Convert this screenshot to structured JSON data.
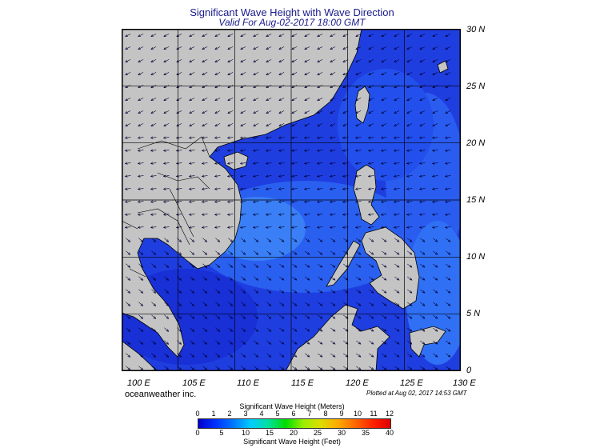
{
  "header": {
    "title": "Significant Wave Height with Wave Direction",
    "subtitle": "Valid For Aug-02-2017 18:00 GMT"
  },
  "axes": {
    "lat_labels": [
      "30 N",
      "25 N",
      "20 N",
      "15 N",
      "10 N",
      "5 N",
      "0"
    ],
    "lon_labels": [
      "100 E",
      "105 E",
      "110 E",
      "115 E",
      "120 E",
      "125 E",
      "130 E"
    ]
  },
  "footer": {
    "brand": "oceanweather inc.",
    "plotted": "Plotted at Aug 02, 2017 14:53 GMT"
  },
  "colorbar": {
    "title_meters": "Significant Wave Height (Meters)",
    "title_feet": "Significant Wave Height (Feet)",
    "meter_ticks": [
      "0",
      "1",
      "2",
      "3",
      "4",
      "5",
      "6",
      "7",
      "8",
      "9",
      "10",
      "11",
      "12"
    ],
    "feet_ticks": [
      "0",
      "5",
      "10",
      "15",
      "20",
      "25",
      "30",
      "35",
      "40"
    ],
    "colors": [
      "#0000cc",
      "#0033ff",
      "#0077ff",
      "#00ccff",
      "#00e0a0",
      "#00dd00",
      "#99ee00",
      "#dddd00",
      "#ffaa00",
      "#ff6600",
      "#ff2200",
      "#dd0000"
    ]
  },
  "map_colors": {
    "land": "#c4c4c4",
    "sea_deep": "#1a33d9",
    "sea_mid": "#2255ee",
    "sea_light": "#3a88f5",
    "grid": "#000000"
  }
}
